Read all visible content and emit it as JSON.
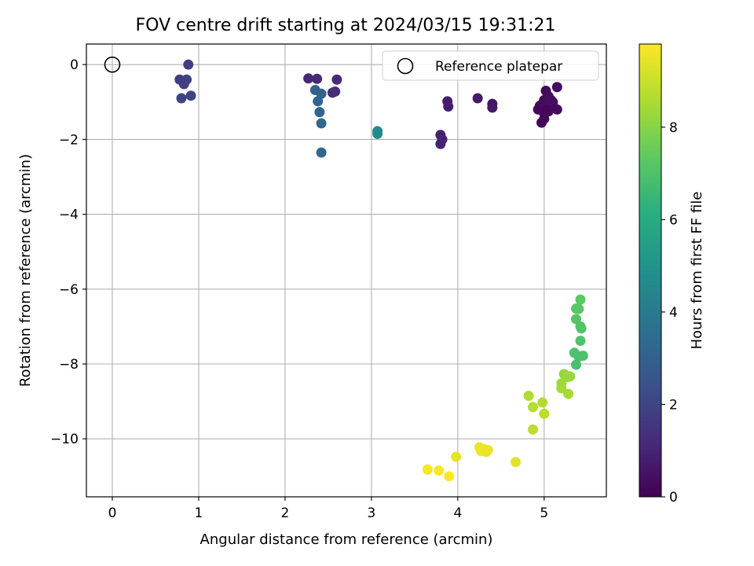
{
  "chart_data": {
    "type": "scatter",
    "title": "FOV centre drift starting at 2024/03/15 19:31:21",
    "xlabel": "Angular distance from reference (arcmin)",
    "ylabel": "Rotation from reference (arcmin)",
    "colorbar_label": "Hours from first FF file",
    "xlim": [
      -0.3,
      5.72
    ],
    "ylim": [
      -11.55,
      0.55
    ],
    "clim": [
      0,
      9.8
    ],
    "x_ticks": [
      0,
      1,
      2,
      3,
      4,
      5
    ],
    "x_tick_labels": [
      "0",
      "1",
      "2",
      "3",
      "4",
      "5"
    ],
    "y_ticks": [
      0,
      -2,
      -4,
      -6,
      -8,
      -10
    ],
    "y_tick_labels": [
      "0",
      "−2",
      "−4",
      "−6",
      "−8",
      "−10"
    ],
    "colorbar_ticks": [
      0,
      2,
      4,
      6,
      8
    ],
    "colorbar_tick_labels": [
      "0",
      "2",
      "4",
      "6",
      "8"
    ],
    "grid": true,
    "colormap": "viridis",
    "legend": {
      "placement": "top-right",
      "entries": [
        "Reference platepar"
      ]
    },
    "reference_point": {
      "x": 0,
      "y": 0
    },
    "points": [
      {
        "x": 5.0,
        "y": -0.95,
        "h": 0.2
      },
      {
        "x": 4.98,
        "y": -1.05,
        "h": 0.25
      },
      {
        "x": 4.95,
        "y": -1.1,
        "h": 0.3
      },
      {
        "x": 5.02,
        "y": -0.7,
        "h": 0.2
      },
      {
        "x": 5.05,
        "y": -0.85,
        "h": 0.3
      },
      {
        "x": 5.1,
        "y": -1.0,
        "h": 0.4
      },
      {
        "x": 5.15,
        "y": -0.6,
        "h": 0.35
      },
      {
        "x": 5.15,
        "y": -1.2,
        "h": 0.3
      },
      {
        "x": 5.08,
        "y": -1.15,
        "h": 0.2
      },
      {
        "x": 5.0,
        "y": -1.3,
        "h": 0.15
      },
      {
        "x": 4.97,
        "y": -1.55,
        "h": 0.1
      },
      {
        "x": 5.0,
        "y": -1.45,
        "h": 0.2
      },
      {
        "x": 5.05,
        "y": -1.25,
        "h": 0.3
      },
      {
        "x": 5.1,
        "y": -1.1,
        "h": 0.25
      },
      {
        "x": 4.93,
        "y": -1.2,
        "h": 0.2
      },
      {
        "x": 5.0,
        "y": -1.05,
        "h": 0.35
      },
      {
        "x": 5.08,
        "y": -0.95,
        "h": 0.4
      },
      {
        "x": 5.03,
        "y": -1.2,
        "h": 0.15
      },
      {
        "x": 4.4,
        "y": -1.05,
        "h": 0.6
      },
      {
        "x": 4.4,
        "y": -1.15,
        "h": 0.65
      },
      {
        "x": 4.23,
        "y": -0.9,
        "h": 0.7
      },
      {
        "x": 3.88,
        "y": -0.98,
        "h": 0.8
      },
      {
        "x": 3.89,
        "y": -1.12,
        "h": 0.85
      },
      {
        "x": 3.8,
        "y": -1.88,
        "h": 0.9
      },
      {
        "x": 3.82,
        "y": -2.0,
        "h": 0.95
      },
      {
        "x": 3.8,
        "y": -2.12,
        "h": 1.0
      },
      {
        "x": 2.27,
        "y": -0.37,
        "h": 1.1
      },
      {
        "x": 2.37,
        "y": -0.38,
        "h": 1.15
      },
      {
        "x": 2.6,
        "y": -0.4,
        "h": 1.2
      },
      {
        "x": 2.55,
        "y": -0.75,
        "h": 1.25
      },
      {
        "x": 2.58,
        "y": -0.72,
        "h": 1.3
      },
      {
        "x": 0.88,
        "y": 0.0,
        "h": 1.8
      },
      {
        "x": 0.78,
        "y": -0.4,
        "h": 1.85
      },
      {
        "x": 0.86,
        "y": -0.4,
        "h": 1.9
      },
      {
        "x": 0.83,
        "y": -0.52,
        "h": 1.95
      },
      {
        "x": 0.8,
        "y": -0.9,
        "h": 2.0
      },
      {
        "x": 0.91,
        "y": -0.83,
        "h": 2.05
      },
      {
        "x": 2.35,
        "y": -0.68,
        "h": 3.0
      },
      {
        "x": 2.42,
        "y": -0.78,
        "h": 3.05
      },
      {
        "x": 2.38,
        "y": -0.98,
        "h": 3.1
      },
      {
        "x": 2.4,
        "y": -1.27,
        "h": 3.15
      },
      {
        "x": 2.42,
        "y": -1.57,
        "h": 3.2
      },
      {
        "x": 2.42,
        "y": -2.35,
        "h": 3.25
      },
      {
        "x": 3.07,
        "y": -1.78,
        "h": 4.6
      },
      {
        "x": 3.07,
        "y": -1.85,
        "h": 4.65
      },
      {
        "x": 5.42,
        "y": -6.28,
        "h": 7.3
      },
      {
        "x": 5.37,
        "y": -6.52,
        "h": 7.25
      },
      {
        "x": 5.4,
        "y": -6.53,
        "h": 7.2
      },
      {
        "x": 5.37,
        "y": -6.8,
        "h": 7.15
      },
      {
        "x": 5.42,
        "y": -7.0,
        "h": 7.1
      },
      {
        "x": 5.43,
        "y": -7.05,
        "h": 7.1
      },
      {
        "x": 5.42,
        "y": -7.38,
        "h": 7.05
      },
      {
        "x": 5.35,
        "y": -7.7,
        "h": 7.0
      },
      {
        "x": 5.45,
        "y": -7.78,
        "h": 7.0
      },
      {
        "x": 5.4,
        "y": -7.8,
        "h": 6.95
      },
      {
        "x": 5.37,
        "y": -8.02,
        "h": 6.9
      },
      {
        "x": 5.23,
        "y": -8.27,
        "h": 8.2
      },
      {
        "x": 5.3,
        "y": -8.33,
        "h": 8.25
      },
      {
        "x": 5.27,
        "y": -8.35,
        "h": 8.3
      },
      {
        "x": 5.2,
        "y": -8.52,
        "h": 8.35
      },
      {
        "x": 5.2,
        "y": -8.65,
        "h": 8.4
      },
      {
        "x": 5.28,
        "y": -8.8,
        "h": 8.45
      },
      {
        "x": 4.82,
        "y": -8.85,
        "h": 8.6
      },
      {
        "x": 4.98,
        "y": -9.03,
        "h": 8.65
      },
      {
        "x": 4.87,
        "y": -9.15,
        "h": 8.7
      },
      {
        "x": 5.0,
        "y": -9.33,
        "h": 8.75
      },
      {
        "x": 4.87,
        "y": -9.75,
        "h": 8.8
      },
      {
        "x": 4.25,
        "y": -10.23,
        "h": 9.5
      },
      {
        "x": 4.3,
        "y": -10.27,
        "h": 9.55
      },
      {
        "x": 4.35,
        "y": -10.3,
        "h": 9.6
      },
      {
        "x": 4.27,
        "y": -10.33,
        "h": 9.55
      },
      {
        "x": 4.33,
        "y": -10.35,
        "h": 9.5
      },
      {
        "x": 3.98,
        "y": -10.48,
        "h": 9.45
      },
      {
        "x": 4.67,
        "y": -10.62,
        "h": 9.4
      },
      {
        "x": 3.65,
        "y": -10.82,
        "h": 9.7
      },
      {
        "x": 3.78,
        "y": -10.85,
        "h": 9.75
      },
      {
        "x": 3.9,
        "y": -11.0,
        "h": 9.8
      }
    ]
  }
}
